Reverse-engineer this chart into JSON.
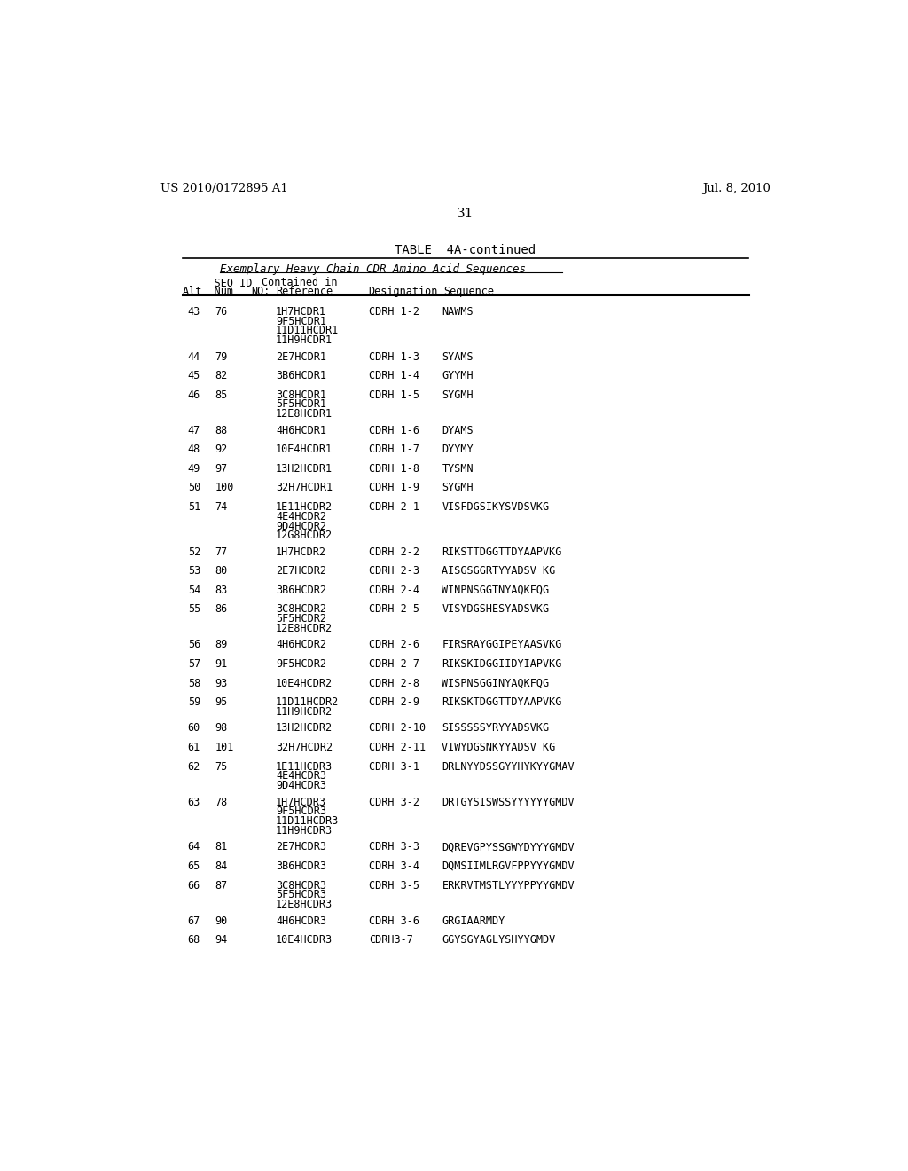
{
  "header_left": "US 2010/0172895 A1",
  "header_right": "Jul. 8, 2010",
  "page_number": "31",
  "table_title": "TABLE  4A-continued",
  "subtitle": "Exemplary Heavy Chain CDR Amino Acid Sequences",
  "background_color": "#ffffff",
  "text_color": "#000000",
  "rows": [
    {
      "alt": "43",
      "num": "76",
      "refs": [
        "1H7HCDR1",
        "9F5HCDR1",
        "11D11HCDR1",
        "11H9HCDR1"
      ],
      "desig": "CDRH 1-2",
      "seq": "NAWMS"
    },
    {
      "alt": "44",
      "num": "79",
      "refs": [
        "2E7HCDR1"
      ],
      "desig": "CDRH 1-3",
      "seq": "SYAMS"
    },
    {
      "alt": "45",
      "num": "82",
      "refs": [
        "3B6HCDR1"
      ],
      "desig": "CDRH 1-4",
      "seq": "GYYMH"
    },
    {
      "alt": "46",
      "num": "85",
      "refs": [
        "3C8HCDR1",
        "5F5HCDR1",
        "12E8HCDR1"
      ],
      "desig": "CDRH 1-5",
      "seq": "SYGMH"
    },
    {
      "alt": "47",
      "num": "88",
      "refs": [
        "4H6HCDR1"
      ],
      "desig": "CDRH 1-6",
      "seq": "DYAMS"
    },
    {
      "alt": "48",
      "num": "92",
      "refs": [
        "10E4HCDR1"
      ],
      "desig": "CDRH 1-7",
      "seq": "DYYMY"
    },
    {
      "alt": "49",
      "num": "97",
      "refs": [
        "13H2HCDR1"
      ],
      "desig": "CDRH 1-8",
      "seq": "TYSMN"
    },
    {
      "alt": "50",
      "num": "100",
      "refs": [
        "32H7HCDR1"
      ],
      "desig": "CDRH 1-9",
      "seq": "SYGMH"
    },
    {
      "alt": "51",
      "num": "74",
      "refs": [
        "1E11HCDR2",
        "4E4HCDR2",
        "9D4HCDR2",
        "12G8HCDR2"
      ],
      "desig": "CDRH 2-1",
      "seq": "VISFDGSIKYSVDSVKG"
    },
    {
      "alt": "52",
      "num": "77",
      "refs": [
        "1H7HCDR2"
      ],
      "desig": "CDRH 2-2",
      "seq": "RIKSTTDGGTTDYAAPVKG"
    },
    {
      "alt": "53",
      "num": "80",
      "refs": [
        "2E7HCDR2"
      ],
      "desig": "CDRH 2-3",
      "seq": "AISGSGGRTYYADSV KG"
    },
    {
      "alt": "54",
      "num": "83",
      "refs": [
        "3B6HCDR2"
      ],
      "desig": "CDRH 2-4",
      "seq": "WINPNSGGTNYAQKFQG"
    },
    {
      "alt": "55",
      "num": "86",
      "refs": [
        "3C8HCDR2",
        "5F5HCDR2",
        "12E8HCDR2"
      ],
      "desig": "CDRH 2-5",
      "seq": "VISYDGSHESYADSVKG"
    },
    {
      "alt": "56",
      "num": "89",
      "refs": [
        "4H6HCDR2"
      ],
      "desig": "CDRH 2-6",
      "seq": "FIRSRAYGGIPEYAASVKG"
    },
    {
      "alt": "57",
      "num": "91",
      "refs": [
        "9F5HCDR2"
      ],
      "desig": "CDRH 2-7",
      "seq": "RIKSKIDGGIIDYIAPVKG"
    },
    {
      "alt": "58",
      "num": "93",
      "refs": [
        "10E4HCDR2"
      ],
      "desig": "CDRH 2-8",
      "seq": "WISPNSGGINYAQKFQG"
    },
    {
      "alt": "59",
      "num": "95",
      "refs": [
        "11D11HCDR2",
        "11H9HCDR2"
      ],
      "desig": "CDRH 2-9",
      "seq": "RIKSKTDGGTTDYAAPVKG"
    },
    {
      "alt": "60",
      "num": "98",
      "refs": [
        "13H2HCDR2"
      ],
      "desig": "CDRH 2-10",
      "seq": "SISSSSSYRYYADSVKG"
    },
    {
      "alt": "61",
      "num": "101",
      "refs": [
        "32H7HCDR2"
      ],
      "desig": "CDRH 2-11",
      "seq": "VIWYDGSNKYYADSV KG"
    },
    {
      "alt": "62",
      "num": "75",
      "refs": [
        "1E11HCDR3",
        "4E4HCDR3",
        "9D4HCDR3"
      ],
      "desig": "CDRH 3-1",
      "seq": "DRLNYYDSSGYYHYKYYGMAV"
    },
    {
      "alt": "63",
      "num": "78",
      "refs": [
        "1H7HCDR3",
        "9F5HCDR3",
        "11D11HCDR3",
        "11H9HCDR3"
      ],
      "desig": "CDRH 3-2",
      "seq": "DRTGYSISWSSYYYYYYGMDV"
    },
    {
      "alt": "64",
      "num": "81",
      "refs": [
        "2E7HCDR3"
      ],
      "desig": "CDRH 3-3",
      "seq": "DQREVGPYSSGWYDYYYGMDV"
    },
    {
      "alt": "65",
      "num": "84",
      "refs": [
        "3B6HCDR3"
      ],
      "desig": "CDRH 3-4",
      "seq": "DQMSIIMLRGVFPPYYYGMDV"
    },
    {
      "alt": "66",
      "num": "87",
      "refs": [
        "3C8HCDR3",
        "5F5HCDR3",
        "12E8HCDR3"
      ],
      "desig": "CDRH 3-5",
      "seq": "ERKRVTMSTLYYYPPYYGMDV"
    },
    {
      "alt": "67",
      "num": "90",
      "refs": [
        "4H6HCDR3"
      ],
      "desig": "CDRH 3-6",
      "seq": "GRGIAARMDY"
    },
    {
      "alt": "68",
      "num": "94",
      "refs": [
        "10E4HCDR3"
      ],
      "desig": "CDRH3-7",
      "seq": "GGYSGYAGLYSHYYGMDV"
    }
  ]
}
